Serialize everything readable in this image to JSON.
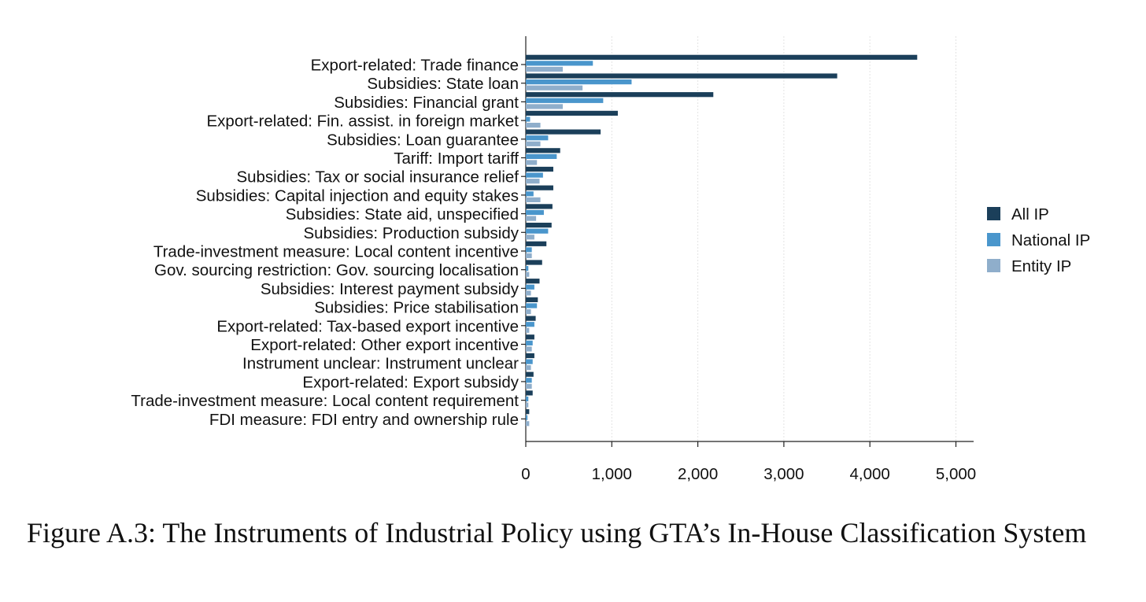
{
  "chart_data": {
    "type": "bar",
    "orientation": "horizontal",
    "categories": [
      "Export-related: Trade finance",
      "Subsidies: State loan",
      "Subsidies: Financial grant",
      "Export-related: Fin. assist. in foreign market",
      "Subsidies: Loan guarantee",
      "Tariff: Import tariff",
      "Subsidies: Tax or social insurance relief",
      "Subsidies: Capital injection and equity stakes",
      "Subsidies: State aid, unspecified",
      "Subsidies: Production subsidy",
      "Trade-investment measure: Local content incentive",
      "Gov. sourcing restriction: Gov. sourcing localisation",
      "Subsidies: Interest payment subsidy",
      "Subsidies: Price stabilisation",
      "Export-related: Tax-based export incentive",
      "Export-related: Other export incentive",
      "Instrument unclear: Instrument unclear",
      "Export-related: Export subsidy",
      "Trade-investment measure: Local content requirement",
      "FDI measure: FDI entry and ownership rule"
    ],
    "series": [
      {
        "name": "All IP",
        "color": "#1b3f5a",
        "values": [
          4550,
          3620,
          2180,
          1070,
          870,
          400,
          320,
          320,
          310,
          300,
          240,
          190,
          160,
          140,
          115,
          100,
          100,
          90,
          80,
          40
        ]
      },
      {
        "name": "National IP",
        "color": "#4a96cc",
        "values": [
          780,
          1230,
          900,
          50,
          260,
          360,
          200,
          90,
          210,
          260,
          70,
          30,
          100,
          130,
          100,
          80,
          80,
          70,
          30,
          20
        ]
      },
      {
        "name": "Entity IP",
        "color": "#8faecb",
        "values": [
          430,
          660,
          430,
          170,
          170,
          130,
          160,
          170,
          120,
          100,
          70,
          40,
          60,
          60,
          40,
          70,
          60,
          70,
          30,
          40
        ]
      }
    ],
    "xticks": [
      "0",
      "1,000",
      "2,000",
      "3,000",
      "4,000",
      "5,000"
    ],
    "xlim": [
      0,
      5200
    ],
    "grid": true,
    "legend_position": "right"
  },
  "caption": "Figure A.3: The Instruments of Industrial Policy using GTA’s In-House Classification System"
}
